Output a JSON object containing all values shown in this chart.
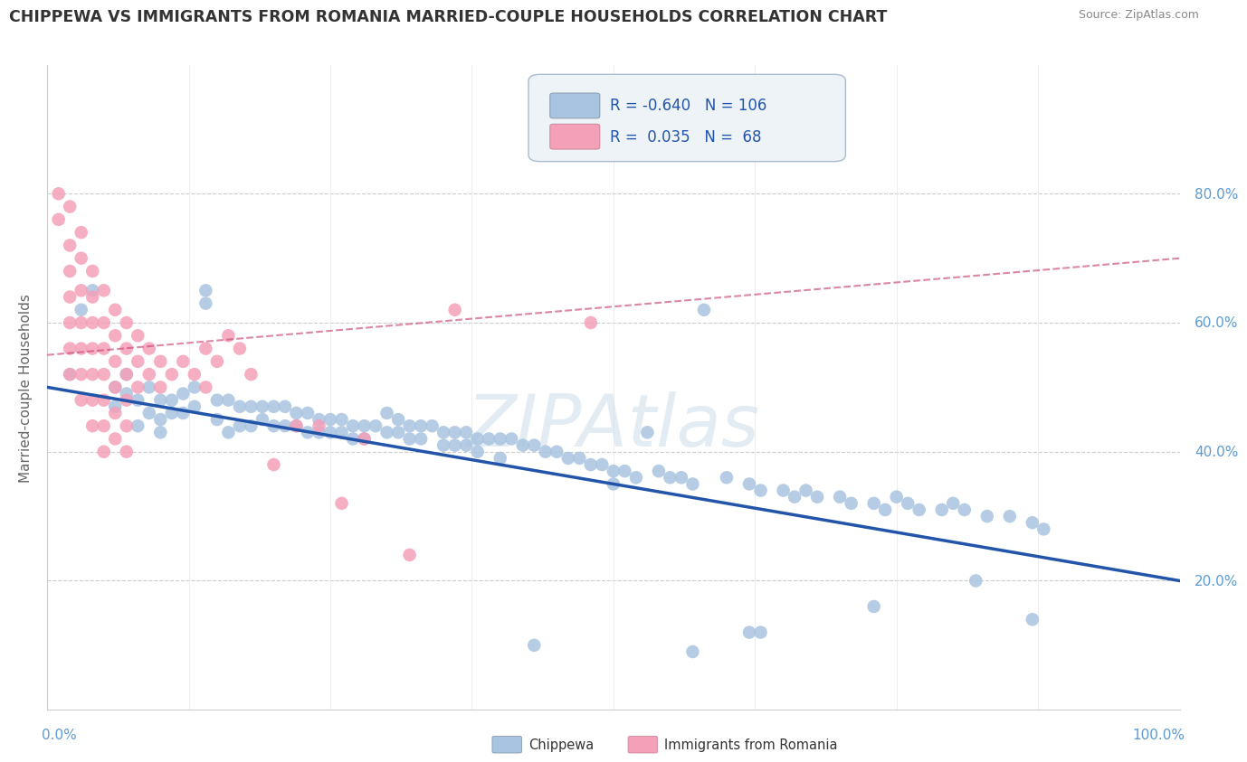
{
  "title": "CHIPPEWA VS IMMIGRANTS FROM ROMANIA MARRIED-COUPLE HOUSEHOLDS CORRELATION CHART",
  "source_text": "Source: ZipAtlas.com",
  "ylabel": "Married-couple Households",
  "xlim": [
    0.0,
    1.0
  ],
  "ylim": [
    0.0,
    1.0
  ],
  "ytick_labels": [
    "20.0%",
    "40.0%",
    "60.0%",
    "80.0%"
  ],
  "ytick_positions": [
    0.2,
    0.4,
    0.6,
    0.8
  ],
  "blue_color": "#a8c4e0",
  "blue_line_color": "#2255aa",
  "pink_color": "#f4a0b8",
  "pink_line_color": "#cc4477",
  "r_blue": -0.64,
  "n_blue": 106,
  "r_pink": 0.035,
  "n_pink": 68,
  "blue_line_x0": 0.0,
  "blue_line_y0": 0.5,
  "blue_line_x1": 1.0,
  "blue_line_y1": 0.2,
  "pink_line_x0": 0.0,
  "pink_line_y0": 0.55,
  "pink_line_x1": 1.0,
  "pink_line_y1": 0.7,
  "blue_scatter": [
    [
      0.02,
      0.52
    ],
    [
      0.03,
      0.62
    ],
    [
      0.04,
      0.65
    ],
    [
      0.06,
      0.5
    ],
    [
      0.06,
      0.47
    ],
    [
      0.07,
      0.52
    ],
    [
      0.07,
      0.49
    ],
    [
      0.08,
      0.48
    ],
    [
      0.08,
      0.44
    ],
    [
      0.09,
      0.5
    ],
    [
      0.09,
      0.46
    ],
    [
      0.1,
      0.48
    ],
    [
      0.1,
      0.45
    ],
    [
      0.1,
      0.43
    ],
    [
      0.11,
      0.48
    ],
    [
      0.11,
      0.46
    ],
    [
      0.12,
      0.49
    ],
    [
      0.12,
      0.46
    ],
    [
      0.13,
      0.5
    ],
    [
      0.13,
      0.47
    ],
    [
      0.14,
      0.65
    ],
    [
      0.14,
      0.63
    ],
    [
      0.15,
      0.48
    ],
    [
      0.15,
      0.45
    ],
    [
      0.16,
      0.48
    ],
    [
      0.16,
      0.43
    ],
    [
      0.17,
      0.47
    ],
    [
      0.17,
      0.44
    ],
    [
      0.18,
      0.47
    ],
    [
      0.18,
      0.44
    ],
    [
      0.19,
      0.47
    ],
    [
      0.19,
      0.45
    ],
    [
      0.2,
      0.47
    ],
    [
      0.2,
      0.44
    ],
    [
      0.21,
      0.47
    ],
    [
      0.21,
      0.44
    ],
    [
      0.22,
      0.46
    ],
    [
      0.22,
      0.44
    ],
    [
      0.23,
      0.46
    ],
    [
      0.23,
      0.43
    ],
    [
      0.24,
      0.45
    ],
    [
      0.24,
      0.43
    ],
    [
      0.25,
      0.45
    ],
    [
      0.25,
      0.43
    ],
    [
      0.26,
      0.45
    ],
    [
      0.26,
      0.43
    ],
    [
      0.27,
      0.44
    ],
    [
      0.27,
      0.42
    ],
    [
      0.28,
      0.44
    ],
    [
      0.28,
      0.42
    ],
    [
      0.29,
      0.44
    ],
    [
      0.3,
      0.46
    ],
    [
      0.3,
      0.43
    ],
    [
      0.31,
      0.45
    ],
    [
      0.31,
      0.43
    ],
    [
      0.32,
      0.44
    ],
    [
      0.32,
      0.42
    ],
    [
      0.33,
      0.44
    ],
    [
      0.33,
      0.42
    ],
    [
      0.34,
      0.44
    ],
    [
      0.35,
      0.43
    ],
    [
      0.35,
      0.41
    ],
    [
      0.36,
      0.43
    ],
    [
      0.36,
      0.41
    ],
    [
      0.37,
      0.43
    ],
    [
      0.37,
      0.41
    ],
    [
      0.38,
      0.42
    ],
    [
      0.38,
      0.4
    ],
    [
      0.39,
      0.42
    ],
    [
      0.4,
      0.42
    ],
    [
      0.4,
      0.39
    ],
    [
      0.41,
      0.42
    ],
    [
      0.42,
      0.41
    ],
    [
      0.43,
      0.41
    ],
    [
      0.44,
      0.4
    ],
    [
      0.45,
      0.4
    ],
    [
      0.46,
      0.39
    ],
    [
      0.47,
      0.39
    ],
    [
      0.48,
      0.38
    ],
    [
      0.49,
      0.38
    ],
    [
      0.5,
      0.37
    ],
    [
      0.5,
      0.35
    ],
    [
      0.51,
      0.37
    ],
    [
      0.52,
      0.36
    ],
    [
      0.53,
      0.43
    ],
    [
      0.54,
      0.37
    ],
    [
      0.55,
      0.36
    ],
    [
      0.56,
      0.36
    ],
    [
      0.57,
      0.35
    ],
    [
      0.58,
      0.62
    ],
    [
      0.6,
      0.36
    ],
    [
      0.62,
      0.35
    ],
    [
      0.63,
      0.34
    ],
    [
      0.65,
      0.34
    ],
    [
      0.66,
      0.33
    ],
    [
      0.67,
      0.34
    ],
    [
      0.68,
      0.33
    ],
    [
      0.7,
      0.33
    ],
    [
      0.71,
      0.32
    ],
    [
      0.73,
      0.32
    ],
    [
      0.74,
      0.31
    ],
    [
      0.75,
      0.33
    ],
    [
      0.76,
      0.32
    ],
    [
      0.77,
      0.31
    ],
    [
      0.79,
      0.31
    ],
    [
      0.8,
      0.32
    ],
    [
      0.81,
      0.31
    ],
    [
      0.83,
      0.3
    ],
    [
      0.85,
      0.3
    ],
    [
      0.87,
      0.29
    ],
    [
      0.88,
      0.28
    ],
    [
      0.62,
      0.12
    ],
    [
      0.63,
      0.12
    ],
    [
      0.73,
      0.16
    ],
    [
      0.82,
      0.2
    ],
    [
      0.87,
      0.14
    ],
    [
      0.43,
      0.1
    ],
    [
      0.57,
      0.09
    ]
  ],
  "pink_scatter": [
    [
      0.01,
      0.8
    ],
    [
      0.01,
      0.76
    ],
    [
      0.02,
      0.78
    ],
    [
      0.02,
      0.72
    ],
    [
      0.02,
      0.68
    ],
    [
      0.02,
      0.64
    ],
    [
      0.02,
      0.6
    ],
    [
      0.02,
      0.56
    ],
    [
      0.02,
      0.52
    ],
    [
      0.03,
      0.74
    ],
    [
      0.03,
      0.7
    ],
    [
      0.03,
      0.65
    ],
    [
      0.03,
      0.6
    ],
    [
      0.03,
      0.56
    ],
    [
      0.03,
      0.52
    ],
    [
      0.03,
      0.48
    ],
    [
      0.04,
      0.68
    ],
    [
      0.04,
      0.64
    ],
    [
      0.04,
      0.6
    ],
    [
      0.04,
      0.56
    ],
    [
      0.04,
      0.52
    ],
    [
      0.04,
      0.48
    ],
    [
      0.04,
      0.44
    ],
    [
      0.05,
      0.65
    ],
    [
      0.05,
      0.6
    ],
    [
      0.05,
      0.56
    ],
    [
      0.05,
      0.52
    ],
    [
      0.05,
      0.48
    ],
    [
      0.05,
      0.44
    ],
    [
      0.05,
      0.4
    ],
    [
      0.06,
      0.62
    ],
    [
      0.06,
      0.58
    ],
    [
      0.06,
      0.54
    ],
    [
      0.06,
      0.5
    ],
    [
      0.06,
      0.46
    ],
    [
      0.06,
      0.42
    ],
    [
      0.07,
      0.6
    ],
    [
      0.07,
      0.56
    ],
    [
      0.07,
      0.52
    ],
    [
      0.07,
      0.48
    ],
    [
      0.07,
      0.44
    ],
    [
      0.07,
      0.4
    ],
    [
      0.08,
      0.58
    ],
    [
      0.08,
      0.54
    ],
    [
      0.08,
      0.5
    ],
    [
      0.09,
      0.56
    ],
    [
      0.09,
      0.52
    ],
    [
      0.1,
      0.54
    ],
    [
      0.1,
      0.5
    ],
    [
      0.11,
      0.52
    ],
    [
      0.12,
      0.54
    ],
    [
      0.13,
      0.52
    ],
    [
      0.14,
      0.56
    ],
    [
      0.14,
      0.5
    ],
    [
      0.15,
      0.54
    ],
    [
      0.16,
      0.58
    ],
    [
      0.17,
      0.56
    ],
    [
      0.18,
      0.52
    ],
    [
      0.2,
      0.38
    ],
    [
      0.22,
      0.44
    ],
    [
      0.24,
      0.44
    ],
    [
      0.26,
      0.32
    ],
    [
      0.28,
      0.42
    ],
    [
      0.32,
      0.24
    ],
    [
      0.36,
      0.62
    ],
    [
      0.48,
      0.6
    ]
  ]
}
